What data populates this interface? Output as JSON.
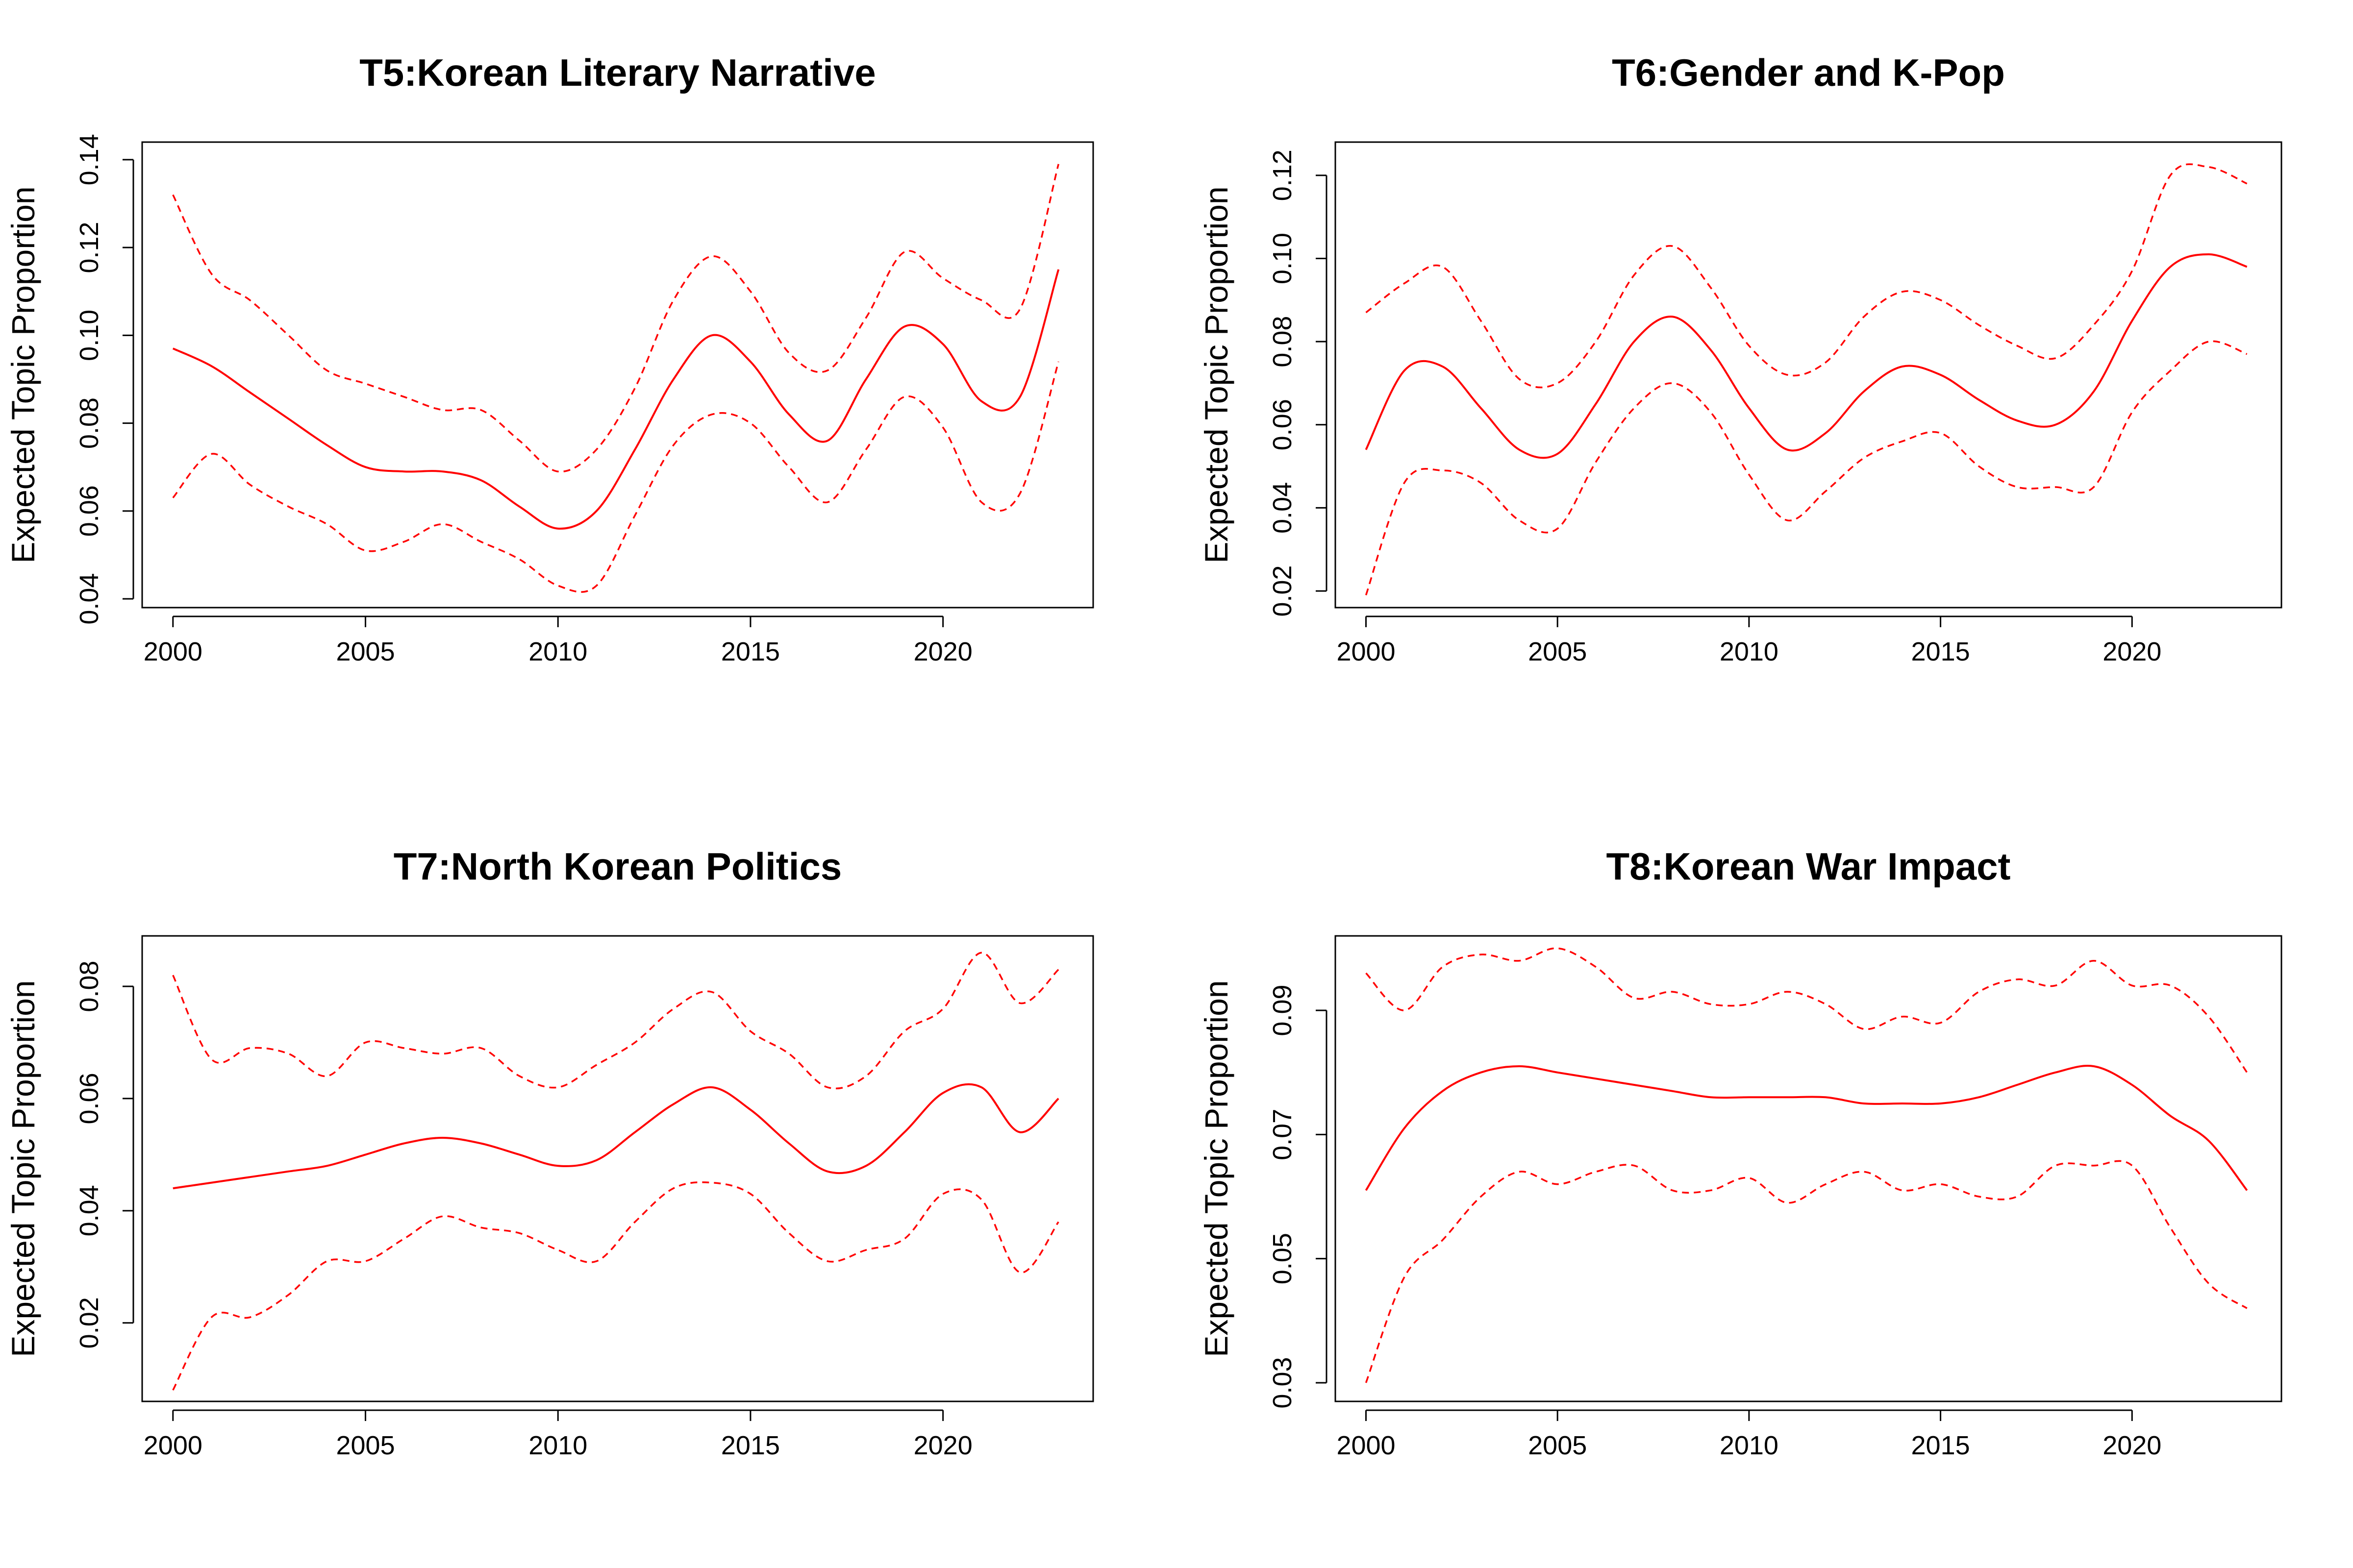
{
  "figure": {
    "line_color": "#ff0000",
    "axis_color": "#000000"
  },
  "chart_data": [
    {
      "type": "line",
      "title": "T5:Korean Literary Narrative",
      "ylabel": "Expected Topic Proportion",
      "xlabel": "",
      "xlim": [
        1999.2,
        2023.9
      ],
      "ylim": [
        0.038,
        0.144
      ],
      "xticks": [
        2000,
        2005,
        2010,
        2015,
        2020
      ],
      "xtick_labels": [
        "2000",
        "2005",
        "2010",
        "2015",
        "2020"
      ],
      "yticks": [
        0.04,
        0.06,
        0.08,
        0.1,
        0.12,
        0.14
      ],
      "ytick_labels": [
        "0.04",
        "0.06",
        "0.08",
        "0.10",
        "0.12",
        "0.14"
      ],
      "grid": false,
      "series": [
        {
          "role": "estimate",
          "style": "solid",
          "x": [
            2000,
            2001,
            2002,
            2003,
            2004,
            2005,
            2006,
            2007,
            2008,
            2009,
            2010,
            2011,
            2012,
            2013,
            2014,
            2015,
            2016,
            2017,
            2018,
            2019,
            2020,
            2021,
            2022,
            2023
          ],
          "y": [
            0.097,
            0.093,
            0.087,
            0.081,
            0.075,
            0.07,
            0.069,
            0.069,
            0.067,
            0.061,
            0.056,
            0.06,
            0.074,
            0.09,
            0.1,
            0.094,
            0.082,
            0.076,
            0.09,
            0.102,
            0.098,
            0.085,
            0.086,
            0.115
          ]
        },
        {
          "role": "upper",
          "style": "dashed",
          "x": [
            2000,
            2001,
            2002,
            2003,
            2004,
            2005,
            2006,
            2007,
            2008,
            2009,
            2010,
            2011,
            2012,
            2013,
            2014,
            2015,
            2016,
            2017,
            2018,
            2019,
            2020,
            2021,
            2022,
            2023
          ],
          "y": [
            0.132,
            0.114,
            0.108,
            0.1,
            0.092,
            0.089,
            0.086,
            0.083,
            0.083,
            0.076,
            0.069,
            0.074,
            0.088,
            0.108,
            0.118,
            0.11,
            0.096,
            0.092,
            0.104,
            0.119,
            0.113,
            0.108,
            0.106,
            0.139
          ]
        },
        {
          "role": "lower",
          "style": "dashed",
          "x": [
            2000,
            2001,
            2002,
            2003,
            2004,
            2005,
            2006,
            2007,
            2008,
            2009,
            2010,
            2011,
            2012,
            2013,
            2014,
            2015,
            2016,
            2017,
            2018,
            2019,
            2020,
            2021,
            2022,
            2023
          ],
          "y": [
            0.063,
            0.073,
            0.066,
            0.061,
            0.057,
            0.051,
            0.053,
            0.057,
            0.053,
            0.049,
            0.043,
            0.043,
            0.059,
            0.075,
            0.082,
            0.08,
            0.07,
            0.062,
            0.074,
            0.086,
            0.079,
            0.062,
            0.064,
            0.094
          ]
        }
      ]
    },
    {
      "type": "line",
      "title": "T6:Gender and K-Pop",
      "ylabel": "Expected Topic Proportion",
      "xlabel": "",
      "xlim": [
        1999.2,
        2023.9
      ],
      "ylim": [
        0.016,
        0.128
      ],
      "xticks": [
        2000,
        2005,
        2010,
        2015,
        2020
      ],
      "xtick_labels": [
        "2000",
        "2005",
        "2010",
        "2015",
        "2020"
      ],
      "yticks": [
        0.02,
        0.04,
        0.06,
        0.08,
        0.1,
        0.12
      ],
      "ytick_labels": [
        "0.02",
        "0.04",
        "0.06",
        "0.08",
        "0.10",
        "0.12"
      ],
      "grid": false,
      "series": [
        {
          "role": "estimate",
          "style": "solid",
          "x": [
            2000,
            2001,
            2002,
            2003,
            2004,
            2005,
            2006,
            2007,
            2008,
            2009,
            2010,
            2011,
            2012,
            2013,
            2014,
            2015,
            2016,
            2017,
            2018,
            2019,
            2020,
            2021,
            2022,
            2023
          ],
          "y": [
            0.054,
            0.073,
            0.074,
            0.064,
            0.054,
            0.053,
            0.065,
            0.08,
            0.086,
            0.078,
            0.064,
            0.054,
            0.058,
            0.068,
            0.074,
            0.072,
            0.066,
            0.061,
            0.06,
            0.068,
            0.085,
            0.098,
            0.101,
            0.098
          ]
        },
        {
          "role": "upper",
          "style": "dashed",
          "x": [
            2000,
            2001,
            2002,
            2003,
            2004,
            2005,
            2006,
            2007,
            2008,
            2009,
            2010,
            2011,
            2012,
            2013,
            2014,
            2015,
            2016,
            2017,
            2018,
            2019,
            2020,
            2021,
            2022,
            2023
          ],
          "y": [
            0.087,
            0.094,
            0.098,
            0.085,
            0.071,
            0.07,
            0.08,
            0.096,
            0.103,
            0.093,
            0.079,
            0.072,
            0.075,
            0.086,
            0.092,
            0.09,
            0.084,
            0.079,
            0.076,
            0.084,
            0.097,
            0.12,
            0.122,
            0.118
          ]
        },
        {
          "role": "lower",
          "style": "dashed",
          "x": [
            2000,
            2001,
            2002,
            2003,
            2004,
            2005,
            2006,
            2007,
            2008,
            2009,
            2010,
            2011,
            2012,
            2013,
            2014,
            2015,
            2016,
            2017,
            2018,
            2019,
            2020,
            2021,
            2022,
            2023
          ],
          "y": [
            0.019,
            0.046,
            0.049,
            0.046,
            0.037,
            0.035,
            0.051,
            0.064,
            0.07,
            0.063,
            0.048,
            0.037,
            0.044,
            0.052,
            0.056,
            0.058,
            0.05,
            0.045,
            0.045,
            0.045,
            0.063,
            0.073,
            0.08,
            0.077
          ]
        }
      ]
    },
    {
      "type": "line",
      "title": "T7:North Korean Politics",
      "ylabel": "Expected Topic Proportion",
      "xlabel": "",
      "xlim": [
        1999.2,
        2023.9
      ],
      "ylim": [
        0.006,
        0.089
      ],
      "xticks": [
        2000,
        2005,
        2010,
        2015,
        2020
      ],
      "xtick_labels": [
        "2000",
        "2005",
        "2010",
        "2015",
        "2020"
      ],
      "yticks": [
        0.02,
        0.04,
        0.06,
        0.08
      ],
      "ytick_labels": [
        "0.02",
        "0.04",
        "0.06",
        "0.08"
      ],
      "grid": false,
      "series": [
        {
          "role": "estimate",
          "style": "solid",
          "x": [
            2000,
            2001,
            2002,
            2003,
            2004,
            2005,
            2006,
            2007,
            2008,
            2009,
            2010,
            2011,
            2012,
            2013,
            2014,
            2015,
            2016,
            2017,
            2018,
            2019,
            2020,
            2021,
            2022,
            2023
          ],
          "y": [
            0.044,
            0.045,
            0.046,
            0.047,
            0.048,
            0.05,
            0.052,
            0.053,
            0.052,
            0.05,
            0.048,
            0.049,
            0.054,
            0.059,
            0.062,
            0.058,
            0.052,
            0.047,
            0.048,
            0.054,
            0.061,
            0.062,
            0.054,
            0.06
          ]
        },
        {
          "role": "upper",
          "style": "dashed",
          "x": [
            2000,
            2001,
            2002,
            2003,
            2004,
            2005,
            2006,
            2007,
            2008,
            2009,
            2010,
            2011,
            2012,
            2013,
            2014,
            2015,
            2016,
            2017,
            2018,
            2019,
            2020,
            2021,
            2022,
            2023
          ],
          "y": [
            0.082,
            0.067,
            0.069,
            0.068,
            0.064,
            0.07,
            0.069,
            0.068,
            0.069,
            0.064,
            0.062,
            0.066,
            0.07,
            0.076,
            0.079,
            0.072,
            0.068,
            0.062,
            0.064,
            0.072,
            0.076,
            0.086,
            0.077,
            0.083
          ]
        },
        {
          "role": "lower",
          "style": "dashed",
          "x": [
            2000,
            2001,
            2002,
            2003,
            2004,
            2005,
            2006,
            2007,
            2008,
            2009,
            2010,
            2011,
            2012,
            2013,
            2014,
            2015,
            2016,
            2017,
            2018,
            2019,
            2020,
            2021,
            2022,
            2023
          ],
          "y": [
            0.008,
            0.021,
            0.021,
            0.025,
            0.031,
            0.031,
            0.035,
            0.039,
            0.037,
            0.036,
            0.033,
            0.031,
            0.038,
            0.044,
            0.045,
            0.043,
            0.036,
            0.031,
            0.033,
            0.035,
            0.043,
            0.042,
            0.029,
            0.038
          ]
        }
      ]
    },
    {
      "type": "line",
      "title": "T8:Korean War Impact",
      "ylabel": "Expected Topic Proportion",
      "xlabel": "",
      "xlim": [
        1999.2,
        2023.9
      ],
      "ylim": [
        0.027,
        0.102
      ],
      "xticks": [
        2000,
        2005,
        2010,
        2015,
        2020
      ],
      "xtick_labels": [
        "2000",
        "2005",
        "2010",
        "2015",
        "2020"
      ],
      "yticks": [
        0.03,
        0.05,
        0.07,
        0.09
      ],
      "ytick_labels": [
        "0.03",
        "0.05",
        "0.07",
        "0.09"
      ],
      "grid": false,
      "series": [
        {
          "role": "estimate",
          "style": "solid",
          "x": [
            2000,
            2001,
            2002,
            2003,
            2004,
            2005,
            2006,
            2007,
            2008,
            2009,
            2010,
            2011,
            2012,
            2013,
            2014,
            2015,
            2016,
            2017,
            2018,
            2019,
            2020,
            2021,
            2022,
            2023
          ],
          "y": [
            0.061,
            0.071,
            0.077,
            0.08,
            0.081,
            0.08,
            0.079,
            0.078,
            0.077,
            0.076,
            0.076,
            0.076,
            0.076,
            0.075,
            0.075,
            0.075,
            0.076,
            0.078,
            0.08,
            0.081,
            0.078,
            0.073,
            0.069,
            0.061
          ]
        },
        {
          "role": "upper",
          "style": "dashed",
          "x": [
            2000,
            2001,
            2002,
            2003,
            2004,
            2005,
            2006,
            2007,
            2008,
            2009,
            2010,
            2011,
            2012,
            2013,
            2014,
            2015,
            2016,
            2017,
            2018,
            2019,
            2020,
            2021,
            2022,
            2023
          ],
          "y": [
            0.096,
            0.09,
            0.097,
            0.099,
            0.098,
            0.1,
            0.097,
            0.092,
            0.093,
            0.091,
            0.091,
            0.093,
            0.091,
            0.087,
            0.089,
            0.088,
            0.093,
            0.095,
            0.094,
            0.098,
            0.094,
            0.094,
            0.089,
            0.08
          ]
        },
        {
          "role": "lower",
          "style": "dashed",
          "x": [
            2000,
            2001,
            2002,
            2003,
            2004,
            2005,
            2006,
            2007,
            2008,
            2009,
            2010,
            2011,
            2012,
            2013,
            2014,
            2015,
            2016,
            2017,
            2018,
            2019,
            2020,
            2021,
            2022,
            2023
          ],
          "y": [
            0.03,
            0.047,
            0.053,
            0.06,
            0.064,
            0.062,
            0.064,
            0.065,
            0.061,
            0.061,
            0.063,
            0.059,
            0.062,
            0.064,
            0.061,
            0.062,
            0.06,
            0.06,
            0.065,
            0.065,
            0.065,
            0.055,
            0.046,
            0.042
          ]
        }
      ]
    }
  ]
}
